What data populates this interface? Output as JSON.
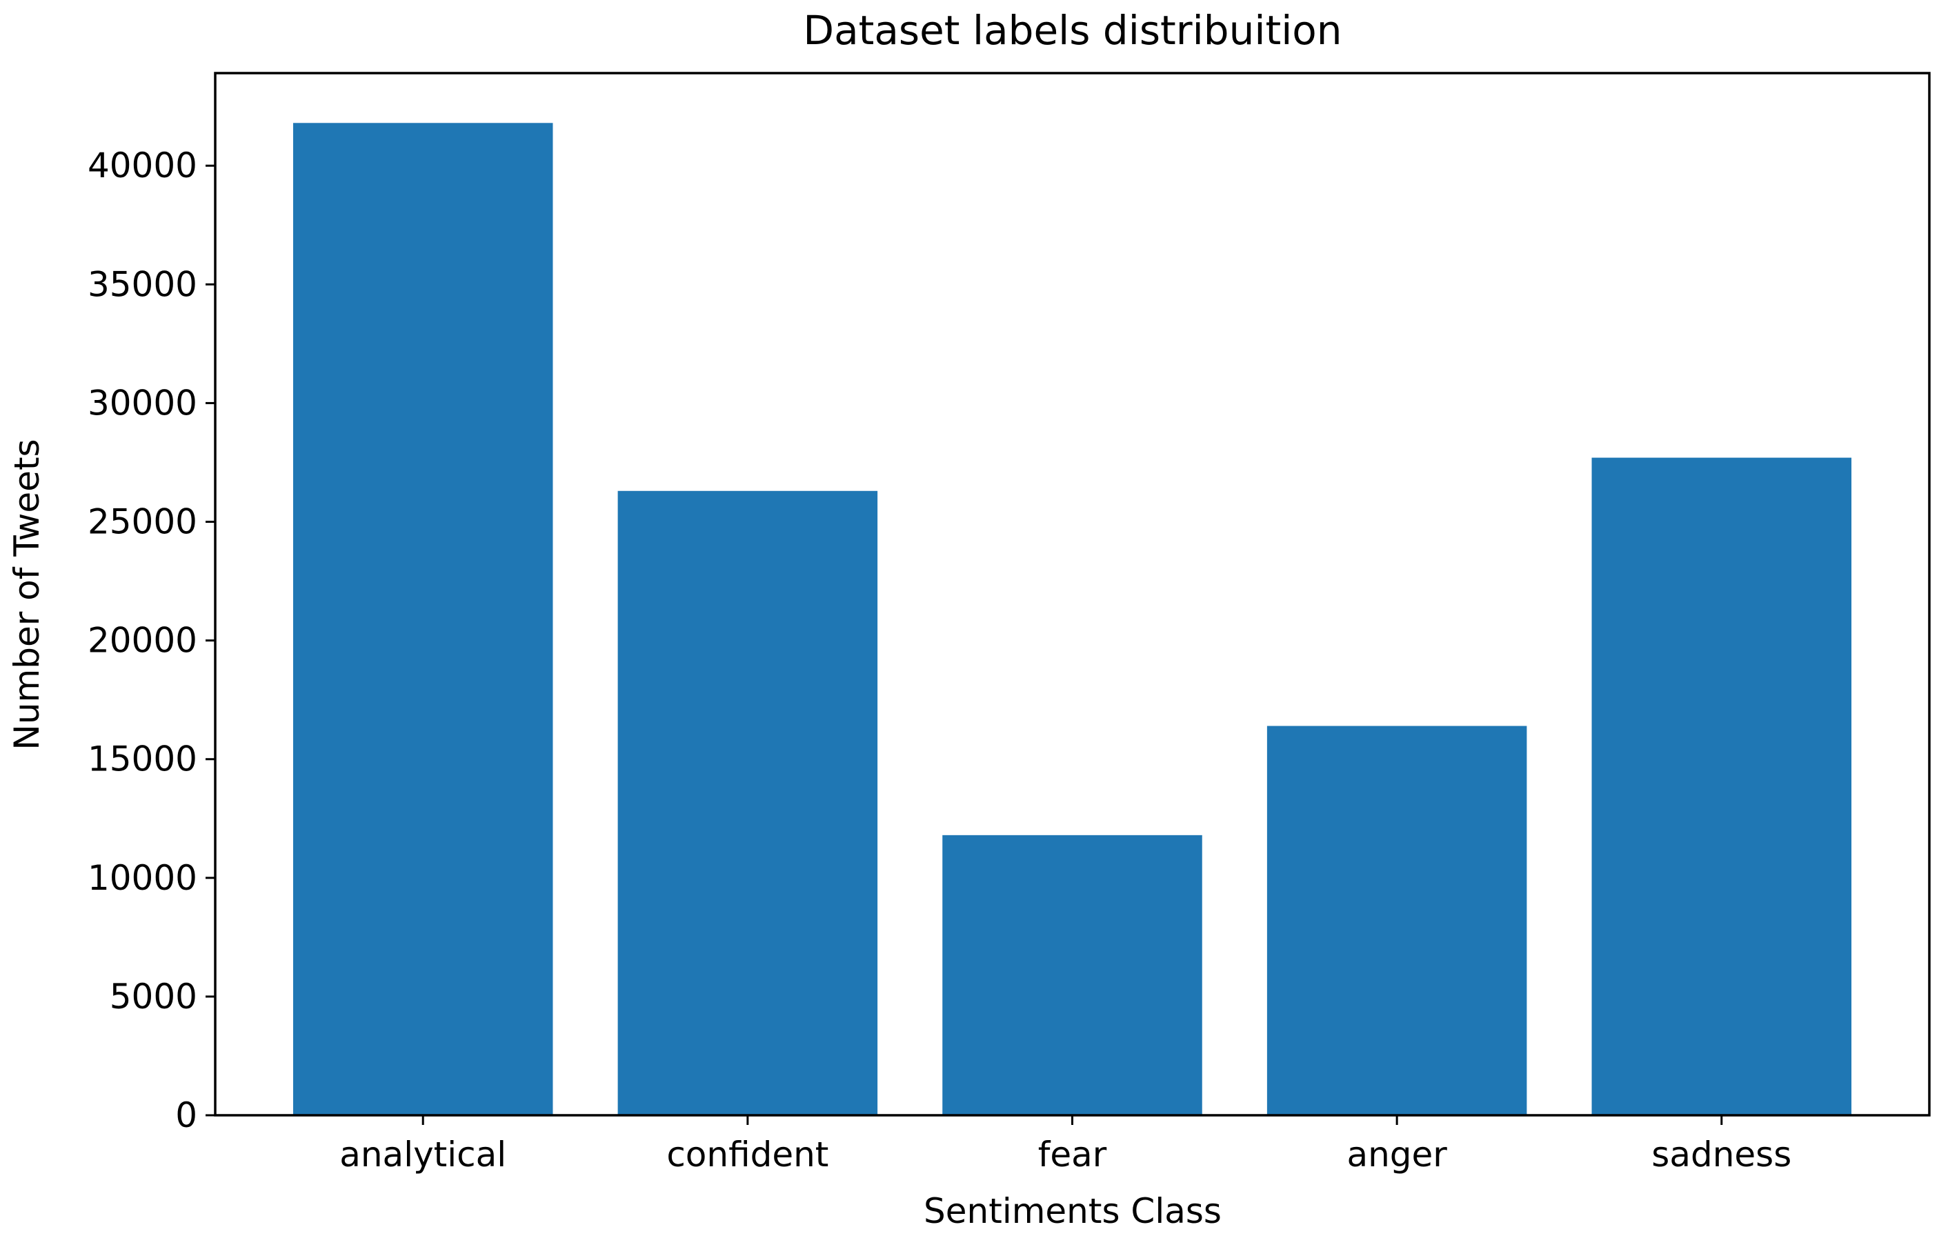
{
  "chart_data": {
    "type": "bar",
    "title": "Dataset labels distribuition",
    "xlabel": "Sentiments Class",
    "ylabel": "Number of Tweets",
    "categories": [
      "analytical",
      "confident",
      "fear",
      "anger",
      "sadness"
    ],
    "values": [
      41800,
      26300,
      11800,
      16400,
      27700
    ],
    "ylim": [
      0,
      43900
    ],
    "yticks": [
      0,
      5000,
      10000,
      15000,
      20000,
      25000,
      30000,
      35000,
      40000
    ],
    "ytick_labels": [
      "0",
      "5000",
      "10000",
      "15000",
      "20000",
      "25000",
      "30000",
      "35000",
      "40000"
    ],
    "grid": false,
    "legend": "none",
    "bar_color": "#1f77b4"
  }
}
